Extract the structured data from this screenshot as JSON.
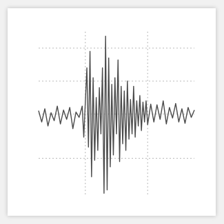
{
  "chart_data": {
    "type": "line",
    "title": "",
    "xlabel": "",
    "ylabel": "",
    "grid": true,
    "legend": "none",
    "xlim": [
      0,
      100
    ],
    "ylim": [
      -1.25,
      1.25
    ],
    "x_ticks": [
      0,
      30,
      70,
      100
    ],
    "y_ticks": [
      -0.67,
      0,
      0.5,
      1.0
    ],
    "line_color": "#4a4a4a",
    "grid_color": "#b8b8b8",
    "series": [
      {
        "name": "",
        "x": [
          0,
          2,
          4,
          6,
          8,
          10,
          12,
          14,
          16,
          18,
          20,
          22,
          24,
          26,
          28,
          29,
          30,
          31,
          32,
          33,
          34,
          35,
          36,
          37,
          38,
          39,
          40,
          41,
          42,
          43,
          44,
          45,
          46,
          47,
          48,
          49,
          50,
          51,
          52,
          53,
          54,
          55,
          56,
          57,
          58,
          59,
          60,
          61,
          62,
          63,
          64,
          65,
          66,
          67,
          68,
          69,
          70,
          72,
          74,
          76,
          78,
          80,
          82,
          84,
          86,
          88,
          90,
          92,
          94,
          96,
          98,
          100
        ],
        "values": [
          0.05,
          -0.12,
          0.08,
          -0.18,
          0.02,
          -0.1,
          0.12,
          -0.15,
          0.06,
          -0.08,
          0.1,
          -0.22,
          0.03,
          -0.05,
          0.12,
          -0.35,
          0.18,
          0.7,
          -0.5,
          0.95,
          -0.95,
          0.55,
          -0.7,
          0.25,
          -0.55,
          0.4,
          -0.3,
          0.7,
          -1.2,
          1.18,
          -1.15,
          0.85,
          -0.8,
          0.45,
          -0.62,
          0.55,
          -0.3,
          0.82,
          -0.72,
          0.42,
          -0.45,
          0.35,
          -0.55,
          0.5,
          -0.38,
          0.22,
          -0.3,
          0.42,
          -0.35,
          0.2,
          -0.18,
          0.28,
          -0.25,
          0.18,
          -0.12,
          0.2,
          -0.16,
          0.15,
          -0.12,
          0.14,
          -0.08,
          0.2,
          -0.15,
          0.1,
          -0.06,
          0.16,
          -0.12,
          0.08,
          -0.14,
          0.1,
          -0.05,
          0.06
        ]
      }
    ]
  }
}
